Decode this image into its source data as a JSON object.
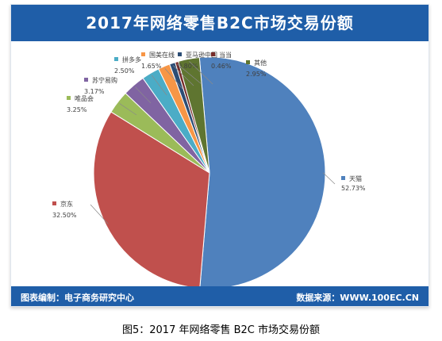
{
  "header": {
    "title": "2017年网络零售B2C市场交易份额"
  },
  "footer": {
    "compiler": "图表编制：电子商务研究中心",
    "source": "数据来源：WWW.100EC.CN"
  },
  "caption": "图5：2017 年网络零售 B2C 市场交易份额",
  "chart_data": {
    "type": "pie",
    "title": "2017年网络零售B2C市场交易份额",
    "slices": [
      {
        "label": "天猫",
        "value": 52.73,
        "pct": "52.73%",
        "color": "#4f81bd"
      },
      {
        "label": "京东",
        "value": 32.5,
        "pct": "32.50%",
        "color": "#c0504d"
      },
      {
        "label": "唯品会",
        "value": 3.25,
        "pct": "3.25%",
        "color": "#9bbb59"
      },
      {
        "label": "苏宁易购",
        "value": 3.17,
        "pct": "3.17%",
        "color": "#8064a2"
      },
      {
        "label": "拼多多",
        "value": 2.5,
        "pct": "2.50%",
        "color": "#4bacc6"
      },
      {
        "label": "国美在线",
        "value": 1.65,
        "pct": "1.65%",
        "color": "#f79646"
      },
      {
        "label": "亚马逊中国",
        "value": 0.8,
        "pct": "0.80%",
        "color": "#2c4d75"
      },
      {
        "label": "当当",
        "value": 0.46,
        "pct": "0.46%",
        "color": "#772c2a"
      },
      {
        "label": "其他",
        "value": 2.95,
        "pct": "2.95%",
        "color": "#5f7530"
      }
    ]
  }
}
